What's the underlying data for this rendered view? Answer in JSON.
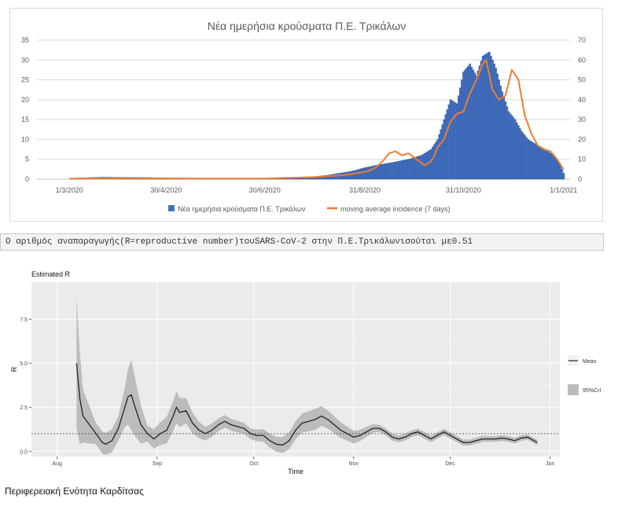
{
  "chart_data": [
    {
      "type": "bar",
      "title": "Νέα ημερήσια κρούσματα Π.Ε. Τρικάλων",
      "x_tick_labels": [
        "1/3/2020",
        "30/4/2020",
        "30/6/2020",
        "31/8/2020",
        "31/10/2020",
        "1/1/2021"
      ],
      "x_range_days": [
        -20,
        310
      ],
      "x_tick_days": [
        0,
        60,
        121,
        183,
        244,
        306
      ],
      "y_left": {
        "ticks": [
          0,
          5,
          10,
          15,
          20,
          25,
          30,
          35
        ],
        "range": [
          0,
          35
        ]
      },
      "y_right": {
        "ticks": [
          0,
          10,
          20,
          30,
          40,
          50,
          60,
          70
        ],
        "range": [
          0,
          70
        ]
      },
      "grid": true,
      "legend_position": "bottom",
      "series": [
        {
          "name": "Νέα ημερήσια κρούσματα Π.Ε. Τρικάλων",
          "axis": "left",
          "color": "#4472C4",
          "points": [
            [
              5,
              0.3
            ],
            [
              20,
              0.5
            ],
            [
              50,
              0.4
            ],
            [
              70,
              0.2
            ],
            [
              120,
              0.2
            ],
            [
              135,
              0.3
            ],
            [
              150,
              0.6
            ],
            [
              160,
              1.0
            ],
            [
              175,
              2.0
            ],
            [
              182,
              2.8
            ],
            [
              190,
              3.5
            ],
            [
              200,
              4.2
            ],
            [
              210,
              5.0
            ],
            [
              218,
              6.0
            ],
            [
              224,
              7.5
            ],
            [
              228,
              10.0
            ],
            [
              232,
              15.0
            ],
            [
              236,
              20.0
            ],
            [
              240,
              19.0
            ],
            [
              244,
              27.0
            ],
            [
              248,
              29.0
            ],
            [
              252,
              26.0
            ],
            [
              256,
              31.0
            ],
            [
              260,
              32.0
            ],
            [
              264,
              28.0
            ],
            [
              268,
              22.0
            ],
            [
              272,
              17.0
            ],
            [
              276,
              15.0
            ],
            [
              280,
              12.0
            ],
            [
              284,
              10.0
            ],
            [
              288,
              9.0
            ],
            [
              292,
              8.0
            ],
            [
              296,
              7.0
            ],
            [
              300,
              6.0
            ],
            [
              304,
              3.5
            ],
            [
              306,
              1.5
            ]
          ]
        },
        {
          "name": "moving average incidence (7 days)",
          "axis": "right",
          "color": "#ED7D31",
          "points": [
            [
              0,
              0.3
            ],
            [
              40,
              0.5
            ],
            [
              80,
              0.3
            ],
            [
              120,
              0.3
            ],
            [
              150,
              1.0
            ],
            [
              170,
              2.0
            ],
            [
              178,
              3.0
            ],
            [
              185,
              4.0
            ],
            [
              190,
              6.0
            ],
            [
              194,
              9.0
            ],
            [
              198,
              13.0
            ],
            [
              202,
              14.0
            ],
            [
              206,
              12.0
            ],
            [
              210,
              13.0
            ],
            [
              215,
              10.0
            ],
            [
              220,
              7.0
            ],
            [
              224,
              9.0
            ],
            [
              226,
              12.0
            ],
            [
              228,
              16.0
            ],
            [
              232,
              20.0
            ],
            [
              236,
              29.0
            ],
            [
              240,
              33.0
            ],
            [
              244,
              34.0
            ],
            [
              248,
              43.0
            ],
            [
              252,
              50.0
            ],
            [
              256,
              58.0
            ],
            [
              258,
              60.0
            ],
            [
              262,
              45.0
            ],
            [
              266,
              40.0
            ],
            [
              270,
              42.0
            ],
            [
              274,
              55.0
            ],
            [
              278,
              50.0
            ],
            [
              282,
              32.0
            ],
            [
              286,
              23.0
            ],
            [
              290,
              17.0
            ],
            [
              294,
              15.0
            ],
            [
              298,
              14.0
            ],
            [
              302,
              10.0
            ],
            [
              306,
              5.0
            ]
          ]
        }
      ]
    },
    {
      "type": "line",
      "title": "Estimated R",
      "xlabel": "Time",
      "ylabel": "R",
      "x_tick_labels": [
        "Aug",
        "Sep",
        "Oct",
        "Nov",
        "Dec",
        "Jan"
      ],
      "x_tick_days": [
        0,
        31,
        61,
        92,
        122,
        153
      ],
      "x_range_days": [
        -8,
        156
      ],
      "y_tick_labels": [
        "0.0",
        "2.5",
        "5.0",
        "7.5"
      ],
      "y_ticks": [
        0,
        2.5,
        5,
        7.5
      ],
      "ylim": [
        -0.3,
        9.6
      ],
      "reference_line": 1.0,
      "legend_position": "right",
      "legend": [
        "Mean",
        "95%CrI"
      ],
      "series": [
        {
          "name": "Mean",
          "color": "#222222",
          "band_color": "#bcbcbc",
          "points": [
            [
              6,
              5.0
            ],
            [
              7,
              3.0
            ],
            [
              8,
              2.0
            ],
            [
              10,
              1.5
            ],
            [
              12,
              1.0
            ],
            [
              14,
              0.5
            ],
            [
              15,
              0.4
            ],
            [
              17,
              0.6
            ],
            [
              19,
              1.3
            ],
            [
              21,
              2.5
            ],
            [
              22,
              3.1
            ],
            [
              23,
              3.2
            ],
            [
              24,
              2.6
            ],
            [
              26,
              1.5
            ],
            [
              28,
              1.0
            ],
            [
              30,
              0.7
            ],
            [
              32,
              1.0
            ],
            [
              34,
              1.2
            ],
            [
              36,
              2.0
            ],
            [
              37,
              2.5
            ],
            [
              38,
              2.2
            ],
            [
              40,
              2.3
            ],
            [
              42,
              1.6
            ],
            [
              44,
              1.2
            ],
            [
              46,
              1.0
            ],
            [
              48,
              1.2
            ],
            [
              50,
              1.5
            ],
            [
              52,
              1.7
            ],
            [
              54,
              1.5
            ],
            [
              56,
              1.4
            ],
            [
              58,
              1.3
            ],
            [
              60,
              1.0
            ],
            [
              62,
              0.9
            ],
            [
              64,
              0.9
            ],
            [
              66,
              0.6
            ],
            [
              68,
              0.4
            ],
            [
              70,
              0.35
            ],
            [
              72,
              0.6
            ],
            [
              74,
              1.2
            ],
            [
              76,
              1.6
            ],
            [
              78,
              1.7
            ],
            [
              80,
              1.8
            ],
            [
              82,
              2.0
            ],
            [
              84,
              1.8
            ],
            [
              86,
              1.5
            ],
            [
              88,
              1.2
            ],
            [
              90,
              1.0
            ],
            [
              92,
              0.8
            ],
            [
              94,
              0.9
            ],
            [
              96,
              1.1
            ],
            [
              98,
              1.3
            ],
            [
              100,
              1.3
            ],
            [
              102,
              1.1
            ],
            [
              104,
              0.8
            ],
            [
              106,
              0.7
            ],
            [
              108,
              0.8
            ],
            [
              110,
              1.0
            ],
            [
              112,
              1.1
            ],
            [
              114,
              0.9
            ],
            [
              116,
              0.7
            ],
            [
              118,
              0.9
            ],
            [
              120,
              1.1
            ],
            [
              122,
              0.9
            ],
            [
              124,
              0.7
            ],
            [
              126,
              0.5
            ],
            [
              128,
              0.5
            ],
            [
              130,
              0.6
            ],
            [
              132,
              0.7
            ],
            [
              134,
              0.7
            ],
            [
              136,
              0.7
            ],
            [
              138,
              0.75
            ],
            [
              140,
              0.7
            ],
            [
              142,
              0.6
            ],
            [
              144,
              0.75
            ],
            [
              146,
              0.8
            ],
            [
              148,
              0.6
            ],
            [
              149,
              0.5
            ]
          ],
          "ci_half_width": [
            [
              6,
              3.7
            ],
            [
              8,
              1.5
            ],
            [
              12,
              0.6
            ],
            [
              20,
              0.7
            ],
            [
              23,
              2.0
            ],
            [
              28,
              0.45
            ],
            [
              37,
              0.9
            ],
            [
              45,
              0.4
            ],
            [
              60,
              0.3
            ],
            [
              80,
              0.6
            ],
            [
              100,
              0.2
            ],
            [
              150,
              0.15
            ]
          ]
        }
      ]
    }
  ],
  "r_statement": "Ο αριθμός αναπαραγωγής(R=reproductive number)τουSARS-CoV-2 στην Π.Ε.Τρικάλωνισούται με0.51",
  "section_heading": "Περιφερειακή Ενότητα Καρδίτσας"
}
